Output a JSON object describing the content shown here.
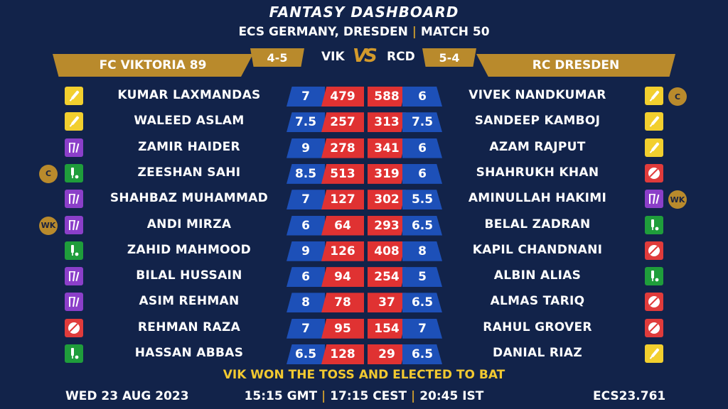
{
  "header": {
    "title": "FANTASY DASHBOARD",
    "league": "ECS GERMANY, DRESDEN",
    "separator": "|",
    "match": "MATCH 50"
  },
  "teams": {
    "left": {
      "name": "FC VIKTORIA 89",
      "abbr": "VIK",
      "score": "4-5"
    },
    "right": {
      "name": "RC DRESDEN",
      "abbr": "RCD",
      "score": "5-4"
    },
    "vs": "VS"
  },
  "players_left": [
    {
      "name": "KUMAR LAXMANDAS",
      "credit": "7",
      "points": "479",
      "role": "bat-icon",
      "badge": ""
    },
    {
      "name": "WALEED ASLAM",
      "credit": "7.5",
      "points": "257",
      "role": "bat-icon",
      "badge": ""
    },
    {
      "name": "ZAMIR HAIDER",
      "credit": "9",
      "points": "278",
      "role": "wicketkeeper-icon",
      "badge": ""
    },
    {
      "name": "ZEESHAN SAHI",
      "credit": "8.5",
      "points": "513",
      "role": "allrounder-icon",
      "badge": "C"
    },
    {
      "name": "SHAHBAZ MUHAMMAD",
      "credit": "7",
      "points": "127",
      "role": "wicketkeeper-icon",
      "badge": ""
    },
    {
      "name": "ANDI MIRZA",
      "credit": "6",
      "points": "64",
      "role": "wicketkeeper-icon",
      "badge": "WK"
    },
    {
      "name": "ZAHID MAHMOOD",
      "credit": "9",
      "points": "126",
      "role": "allrounder-icon",
      "badge": ""
    },
    {
      "name": "BILAL HUSSAIN",
      "credit": "6",
      "points": "94",
      "role": "wicketkeeper-icon",
      "badge": ""
    },
    {
      "name": "ASIM REHMAN",
      "credit": "8",
      "points": "78",
      "role": "wicketkeeper-icon",
      "badge": ""
    },
    {
      "name": "REHMAN RAZA",
      "credit": "7",
      "points": "95",
      "role": "ball-icon",
      "badge": ""
    },
    {
      "name": "HASSAN ABBAS",
      "credit": "6.5",
      "points": "128",
      "role": "allrounder-icon",
      "badge": ""
    }
  ],
  "players_right": [
    {
      "name": "VIVEK NANDKUMAR",
      "credit": "6",
      "points": "588",
      "role": "bat-icon",
      "badge": "C"
    },
    {
      "name": "SANDEEP KAMBOJ",
      "credit": "7.5",
      "points": "313",
      "role": "bat-icon",
      "badge": ""
    },
    {
      "name": "AZAM RAJPUT",
      "credit": "6",
      "points": "341",
      "role": "bat-icon",
      "badge": ""
    },
    {
      "name": "SHAHRUKH KHAN",
      "credit": "6",
      "points": "319",
      "role": "ball-icon",
      "badge": ""
    },
    {
      "name": "AMINULLAH HAKIMI",
      "credit": "5.5",
      "points": "302",
      "role": "wicketkeeper-icon",
      "badge": "WK"
    },
    {
      "name": "BELAL ZADRAN",
      "credit": "6.5",
      "points": "293",
      "role": "allrounder-icon",
      "badge": ""
    },
    {
      "name": "KAPIL CHANDNANI",
      "credit": "8",
      "points": "408",
      "role": "ball-icon",
      "badge": ""
    },
    {
      "name": "ALBIN ALIAS",
      "credit": "5",
      "points": "254",
      "role": "allrounder-icon",
      "badge": ""
    },
    {
      "name": "ALMAS TARIQ",
      "credit": "6.5",
      "points": "37",
      "role": "ball-icon",
      "badge": ""
    },
    {
      "name": "RAHUL GROVER",
      "credit": "7",
      "points": "154",
      "role": "ball-icon",
      "badge": ""
    },
    {
      "name": "DANIAL RIAZ",
      "credit": "6.5",
      "points": "29",
      "role": "bat-icon",
      "badge": ""
    }
  ],
  "footer": {
    "toss": "VIK WON THE TOSS AND ELECTED TO BAT",
    "date": "WED 23 AUG 2023",
    "time_gmt": "15:15 GMT",
    "time_cest": "17:15 CEST",
    "time_ist": "20:45 IST",
    "separator": "|",
    "match_id": "ECS23.761"
  },
  "colors": {
    "background": "#12234a",
    "gold": "#b98a2c",
    "credit_blue": "#1d50b8",
    "points_red": "#e03232",
    "bat": "#f2cf2e",
    "bowl": "#e03b3b",
    "wk": "#8b3fc9",
    "allrounder": "#1f9d3b",
    "toss": "#f2c930"
  }
}
